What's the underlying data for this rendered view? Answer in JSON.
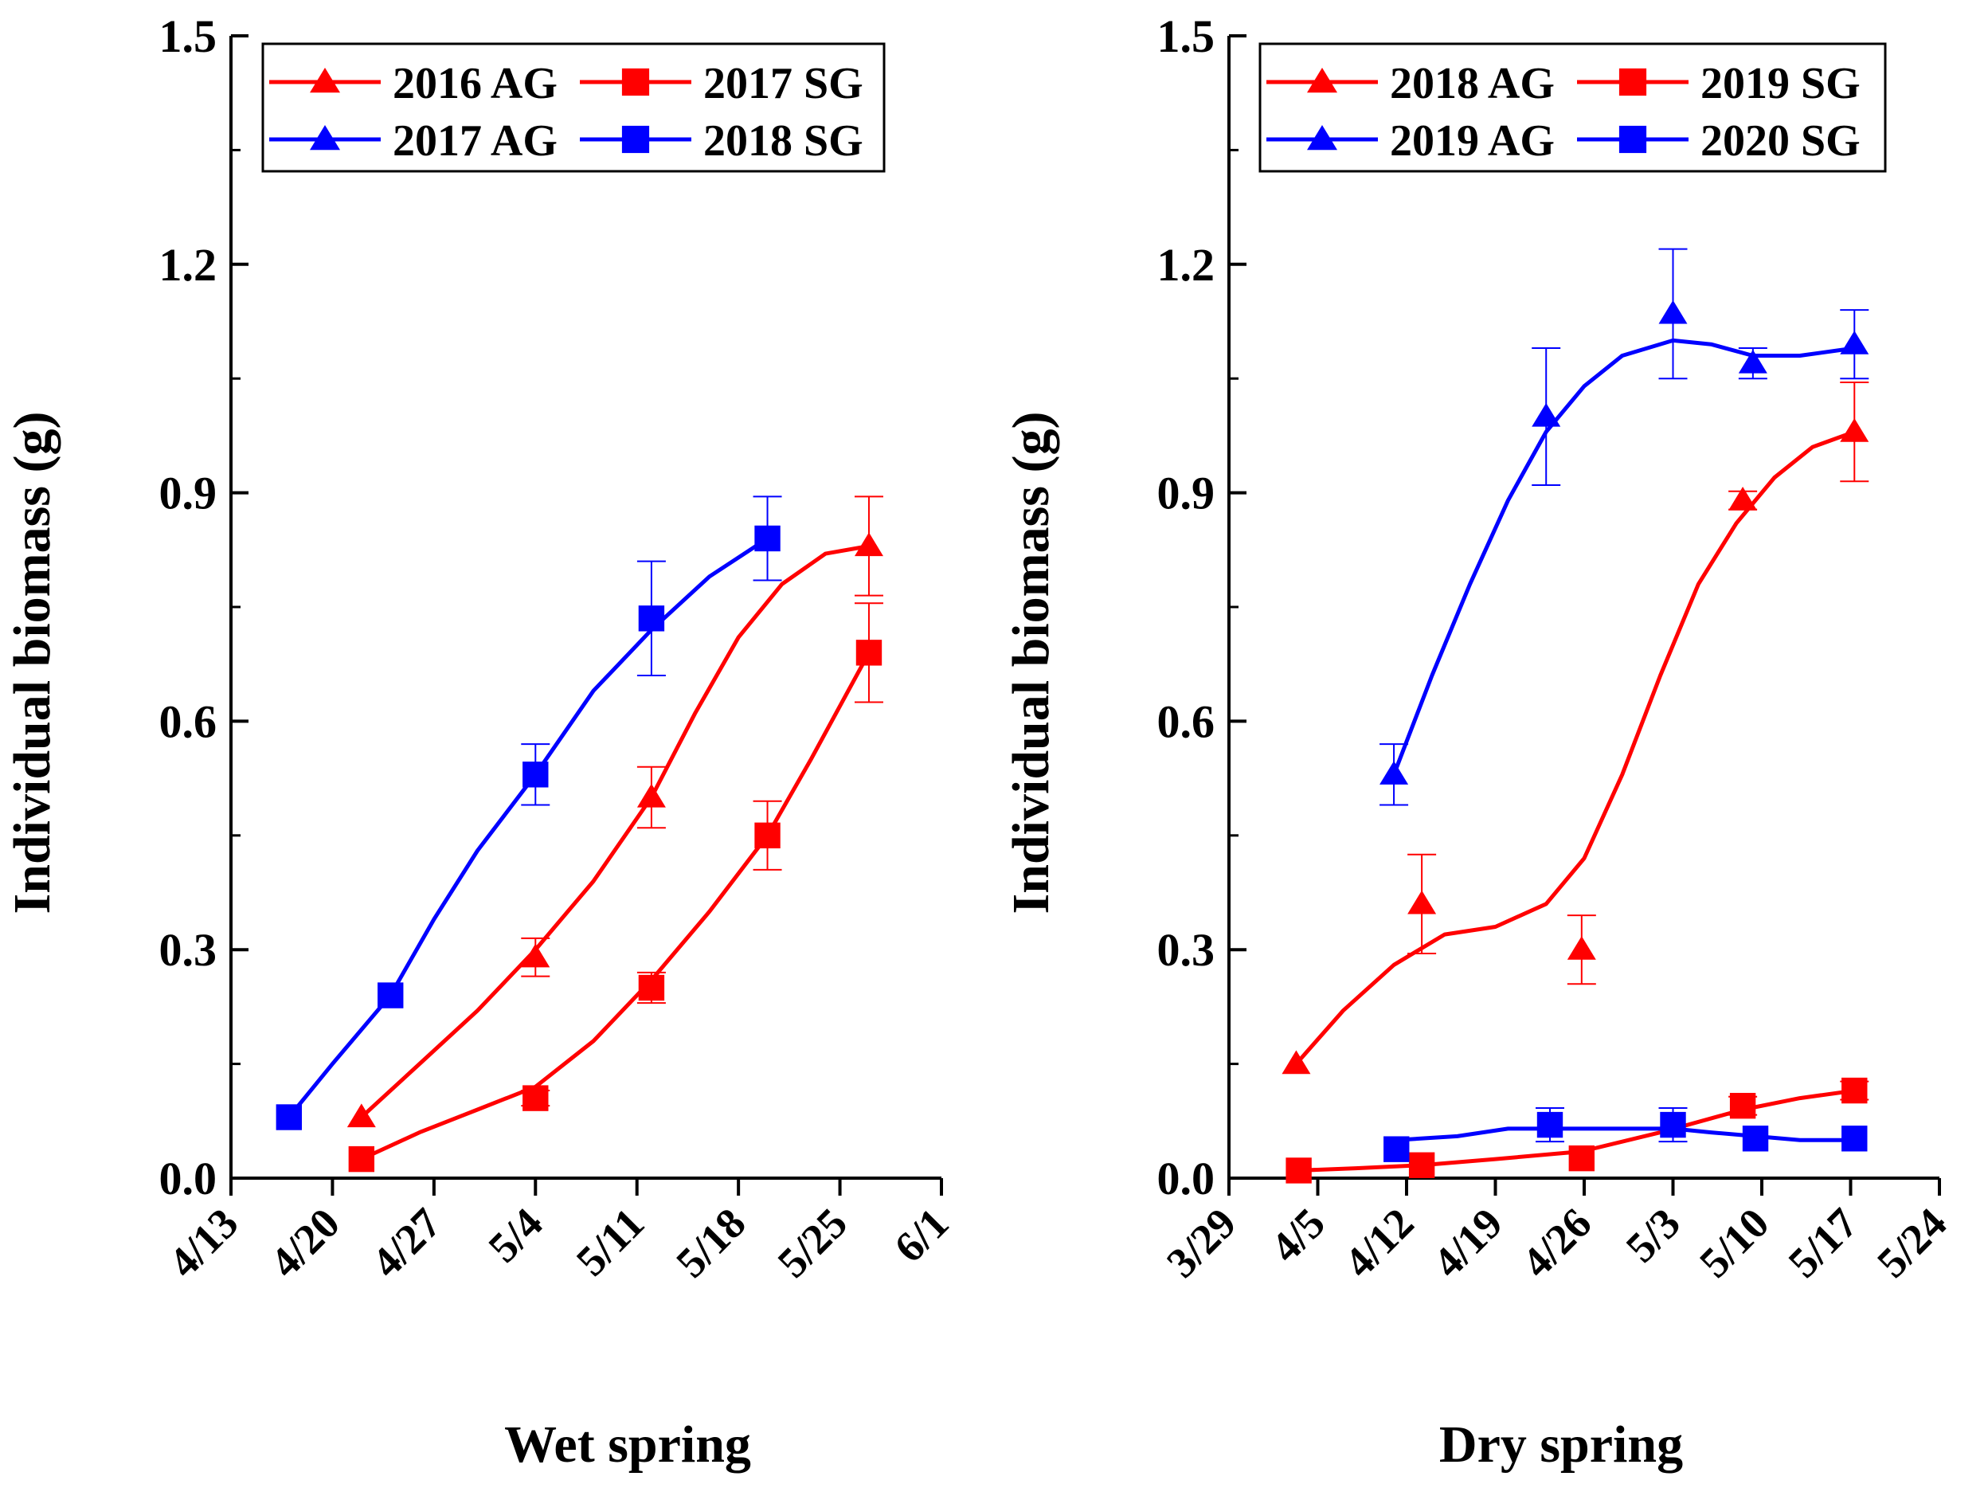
{
  "colors": {
    "red": "#ff0000",
    "blue": "#0000ff",
    "axis": "#000000"
  },
  "chart_data": [
    {
      "type": "line",
      "panel": "left",
      "title": "",
      "xlabel": "Wet spring",
      "ylabel": "Individual biomass (g)",
      "ylim": [
        0,
        1.5
      ],
      "yticks": [
        "0.0",
        "0.3",
        "0.6",
        "0.9",
        "1.2",
        "1.5"
      ],
      "xlim_day": [
        0,
        49
      ],
      "xticks": [
        {
          "label": "4/13",
          "day": 0
        },
        {
          "label": "4/20",
          "day": 7
        },
        {
          "label": "4/27",
          "day": 14
        },
        {
          "label": "5/4",
          "day": 21
        },
        {
          "label": "5/11",
          "day": 28
        },
        {
          "label": "5/18",
          "day": 35
        },
        {
          "label": "5/25",
          "day": 42
        },
        {
          "label": "6/1",
          "day": 49
        }
      ],
      "legend_position": "top-left",
      "series": [
        {
          "name": "2016 AG",
          "color": "red",
          "marker": "triangle",
          "points": [
            {
              "day": 9,
              "y": 0.08,
              "err": 0.0
            },
            {
              "day": 21,
              "y": 0.29,
              "err": 0.025
            },
            {
              "day": 29,
              "y": 0.5,
              "err": 0.04
            },
            {
              "day": 44,
              "y": 0.83,
              "err": 0.065
            }
          ],
          "curve": [
            [
              9,
              0.08
            ],
            [
              13,
              0.15
            ],
            [
              17,
              0.22
            ],
            [
              21,
              0.3
            ],
            [
              25,
              0.39
            ],
            [
              29,
              0.5
            ],
            [
              32,
              0.61
            ],
            [
              35,
              0.71
            ],
            [
              38,
              0.78
            ],
            [
              41,
              0.82
            ],
            [
              44,
              0.83
            ]
          ]
        },
        {
          "name": "2017 SG",
          "color": "red",
          "marker": "square",
          "points": [
            {
              "day": 9,
              "y": 0.025,
              "err": 0.0
            },
            {
              "day": 21,
              "y": 0.105,
              "err": 0.01
            },
            {
              "day": 29,
              "y": 0.25,
              "err": 0.02
            },
            {
              "day": 37,
              "y": 0.45,
              "err": 0.045
            },
            {
              "day": 44,
              "y": 0.69,
              "err": 0.065
            }
          ],
          "curve": [
            [
              9,
              0.025
            ],
            [
              13,
              0.06
            ],
            [
              17,
              0.09
            ],
            [
              21,
              0.12
            ],
            [
              25,
              0.18
            ],
            [
              29,
              0.26
            ],
            [
              33,
              0.35
            ],
            [
              37,
              0.45
            ],
            [
              40,
              0.55
            ],
            [
              42,
              0.62
            ],
            [
              44,
              0.69
            ]
          ]
        },
        {
          "name": "2017 AG",
          "color": "blue",
          "marker": "triangle",
          "points": [],
          "curve": []
        },
        {
          "name": "2018 SG",
          "color": "blue",
          "marker": "square",
          "points": [
            {
              "day": 4,
              "y": 0.08,
              "err": 0.0
            },
            {
              "day": 11,
              "y": 0.24,
              "err": 0.0
            },
            {
              "day": 21,
              "y": 0.53,
              "err": 0.04
            },
            {
              "day": 29,
              "y": 0.735,
              "err": 0.075
            },
            {
              "day": 37,
              "y": 0.84,
              "err": 0.055
            }
          ],
          "curve": [
            [
              4,
              0.08
            ],
            [
              7,
              0.15
            ],
            [
              11,
              0.24
            ],
            [
              14,
              0.34
            ],
            [
              17,
              0.43
            ],
            [
              21,
              0.53
            ],
            [
              25,
              0.64
            ],
            [
              29,
              0.72
            ],
            [
              33,
              0.79
            ],
            [
              37,
              0.84
            ]
          ]
        }
      ]
    },
    {
      "type": "line",
      "panel": "right",
      "title": "",
      "xlabel": "Dry spring",
      "ylabel": "Individual biomass (g)",
      "ylim": [
        0,
        1.5
      ],
      "yticks": [
        "0.0",
        "0.3",
        "0.6",
        "0.9",
        "1.2",
        "1.5"
      ],
      "xlim_day": [
        0,
        56
      ],
      "xticks": [
        {
          "label": "3/29",
          "day": 0
        },
        {
          "label": "4/5",
          "day": 7
        },
        {
          "label": "4/12",
          "day": 14
        },
        {
          "label": "4/19",
          "day": 21
        },
        {
          "label": "4/26",
          "day": 28
        },
        {
          "label": "5/3",
          "day": 35
        },
        {
          "label": "5/10",
          "day": 42
        },
        {
          "label": "5/17",
          "day": 49
        },
        {
          "label": "5/24",
          "day": 56
        }
      ],
      "legend_position": "top-left",
      "series": [
        {
          "name": "2018 AG",
          "color": "red",
          "marker": "triangle",
          "points": [
            {
              "day": 5.3,
              "y": 0.15,
              "err": 0.0
            },
            {
              "day": 15.2,
              "y": 0.36,
              "err": 0.065
            },
            {
              "day": 27.8,
              "y": 0.3,
              "err": 0.045
            },
            {
              "day": 40.5,
              "y": 0.89,
              "err": 0.012
            },
            {
              "day": 49.3,
              "y": 0.98,
              "err": 0.065
            }
          ],
          "curve": [
            [
              5.3,
              0.15
            ],
            [
              9,
              0.22
            ],
            [
              13,
              0.28
            ],
            [
              17,
              0.32
            ],
            [
              21,
              0.33
            ],
            [
              25,
              0.36
            ],
            [
              28,
              0.42
            ],
            [
              31,
              0.53
            ],
            [
              34,
              0.66
            ],
            [
              37,
              0.78
            ],
            [
              40,
              0.86
            ],
            [
              43,
              0.92
            ],
            [
              46,
              0.96
            ],
            [
              49.3,
              0.98
            ]
          ]
        },
        {
          "name": "2019 SG",
          "color": "red",
          "marker": "square",
          "points": [
            {
              "day": 5.5,
              "y": 0.01,
              "err": 0.0
            },
            {
              "day": 15.2,
              "y": 0.017,
              "err": 0.0
            },
            {
              "day": 27.8,
              "y": 0.026,
              "err": 0.0
            },
            {
              "day": 40.5,
              "y": 0.095,
              "err": 0.012
            },
            {
              "day": 49.3,
              "y": 0.115,
              "err": 0.012
            }
          ],
          "curve": [
            [
              5.5,
              0.01
            ],
            [
              10,
              0.013
            ],
            [
              15.2,
              0.017
            ],
            [
              21,
              0.025
            ],
            [
              27.8,
              0.035
            ],
            [
              34,
              0.06
            ],
            [
              40.5,
              0.09
            ],
            [
              45,
              0.105
            ],
            [
              49.3,
              0.115
            ]
          ]
        },
        {
          "name": "2019 AG",
          "color": "blue",
          "marker": "triangle",
          "points": [
            {
              "day": 13,
              "y": 0.53,
              "err": 0.04
            },
            {
              "day": 25,
              "y": 1.0,
              "err": 0.09
            },
            {
              "day": 35,
              "y": 1.135,
              "err": 0.085
            },
            {
              "day": 41.3,
              "y": 1.07,
              "err": 0.02
            },
            {
              "day": 49.3,
              "y": 1.095,
              "err": 0.045
            }
          ],
          "curve": [
            [
              13,
              0.53
            ],
            [
              16,
              0.66
            ],
            [
              19,
              0.78
            ],
            [
              22,
              0.89
            ],
            [
              25,
              0.98
            ],
            [
              28,
              1.04
            ],
            [
              31,
              1.08
            ],
            [
              35,
              1.1
            ],
            [
              38,
              1.095
            ],
            [
              41.3,
              1.08
            ],
            [
              45,
              1.08
            ],
            [
              49.3,
              1.09
            ]
          ]
        },
        {
          "name": "2020 SG",
          "color": "blue",
          "marker": "square",
          "points": [
            {
              "day": 13.2,
              "y": 0.038,
              "err": 0.0
            },
            {
              "day": 25.3,
              "y": 0.07,
              "err": 0.022
            },
            {
              "day": 35,
              "y": 0.07,
              "err": 0.022
            },
            {
              "day": 41.5,
              "y": 0.052,
              "err": 0.0
            },
            {
              "day": 49.3,
              "y": 0.052,
              "err": 0.0
            }
          ],
          "curve": [
            [
              13.2,
              0.05
            ],
            [
              18,
              0.055
            ],
            [
              22,
              0.065
            ],
            [
              25.3,
              0.065
            ],
            [
              30,
              0.065
            ],
            [
              35,
              0.065
            ],
            [
              38,
              0.06
            ],
            [
              41.5,
              0.055
            ],
            [
              45,
              0.05
            ],
            [
              49.3,
              0.05
            ]
          ]
        }
      ]
    }
  ],
  "legend_left": {
    "entries": [
      {
        "label": "2016 AG",
        "color": "red",
        "marker": "triangle"
      },
      {
        "label": "2017 SG",
        "color": "red",
        "marker": "square"
      },
      {
        "label": "2017 AG",
        "color": "blue",
        "marker": "triangle"
      },
      {
        "label": "2018 SG",
        "color": "blue",
        "marker": "square"
      }
    ]
  },
  "legend_right": {
    "entries": [
      {
        "label": "2018 AG",
        "color": "red",
        "marker": "triangle"
      },
      {
        "label": "2019 SG",
        "color": "red",
        "marker": "square"
      },
      {
        "label": "2019 AG",
        "color": "blue",
        "marker": "triangle"
      },
      {
        "label": "2020 SG",
        "color": "blue",
        "marker": "square"
      }
    ]
  }
}
